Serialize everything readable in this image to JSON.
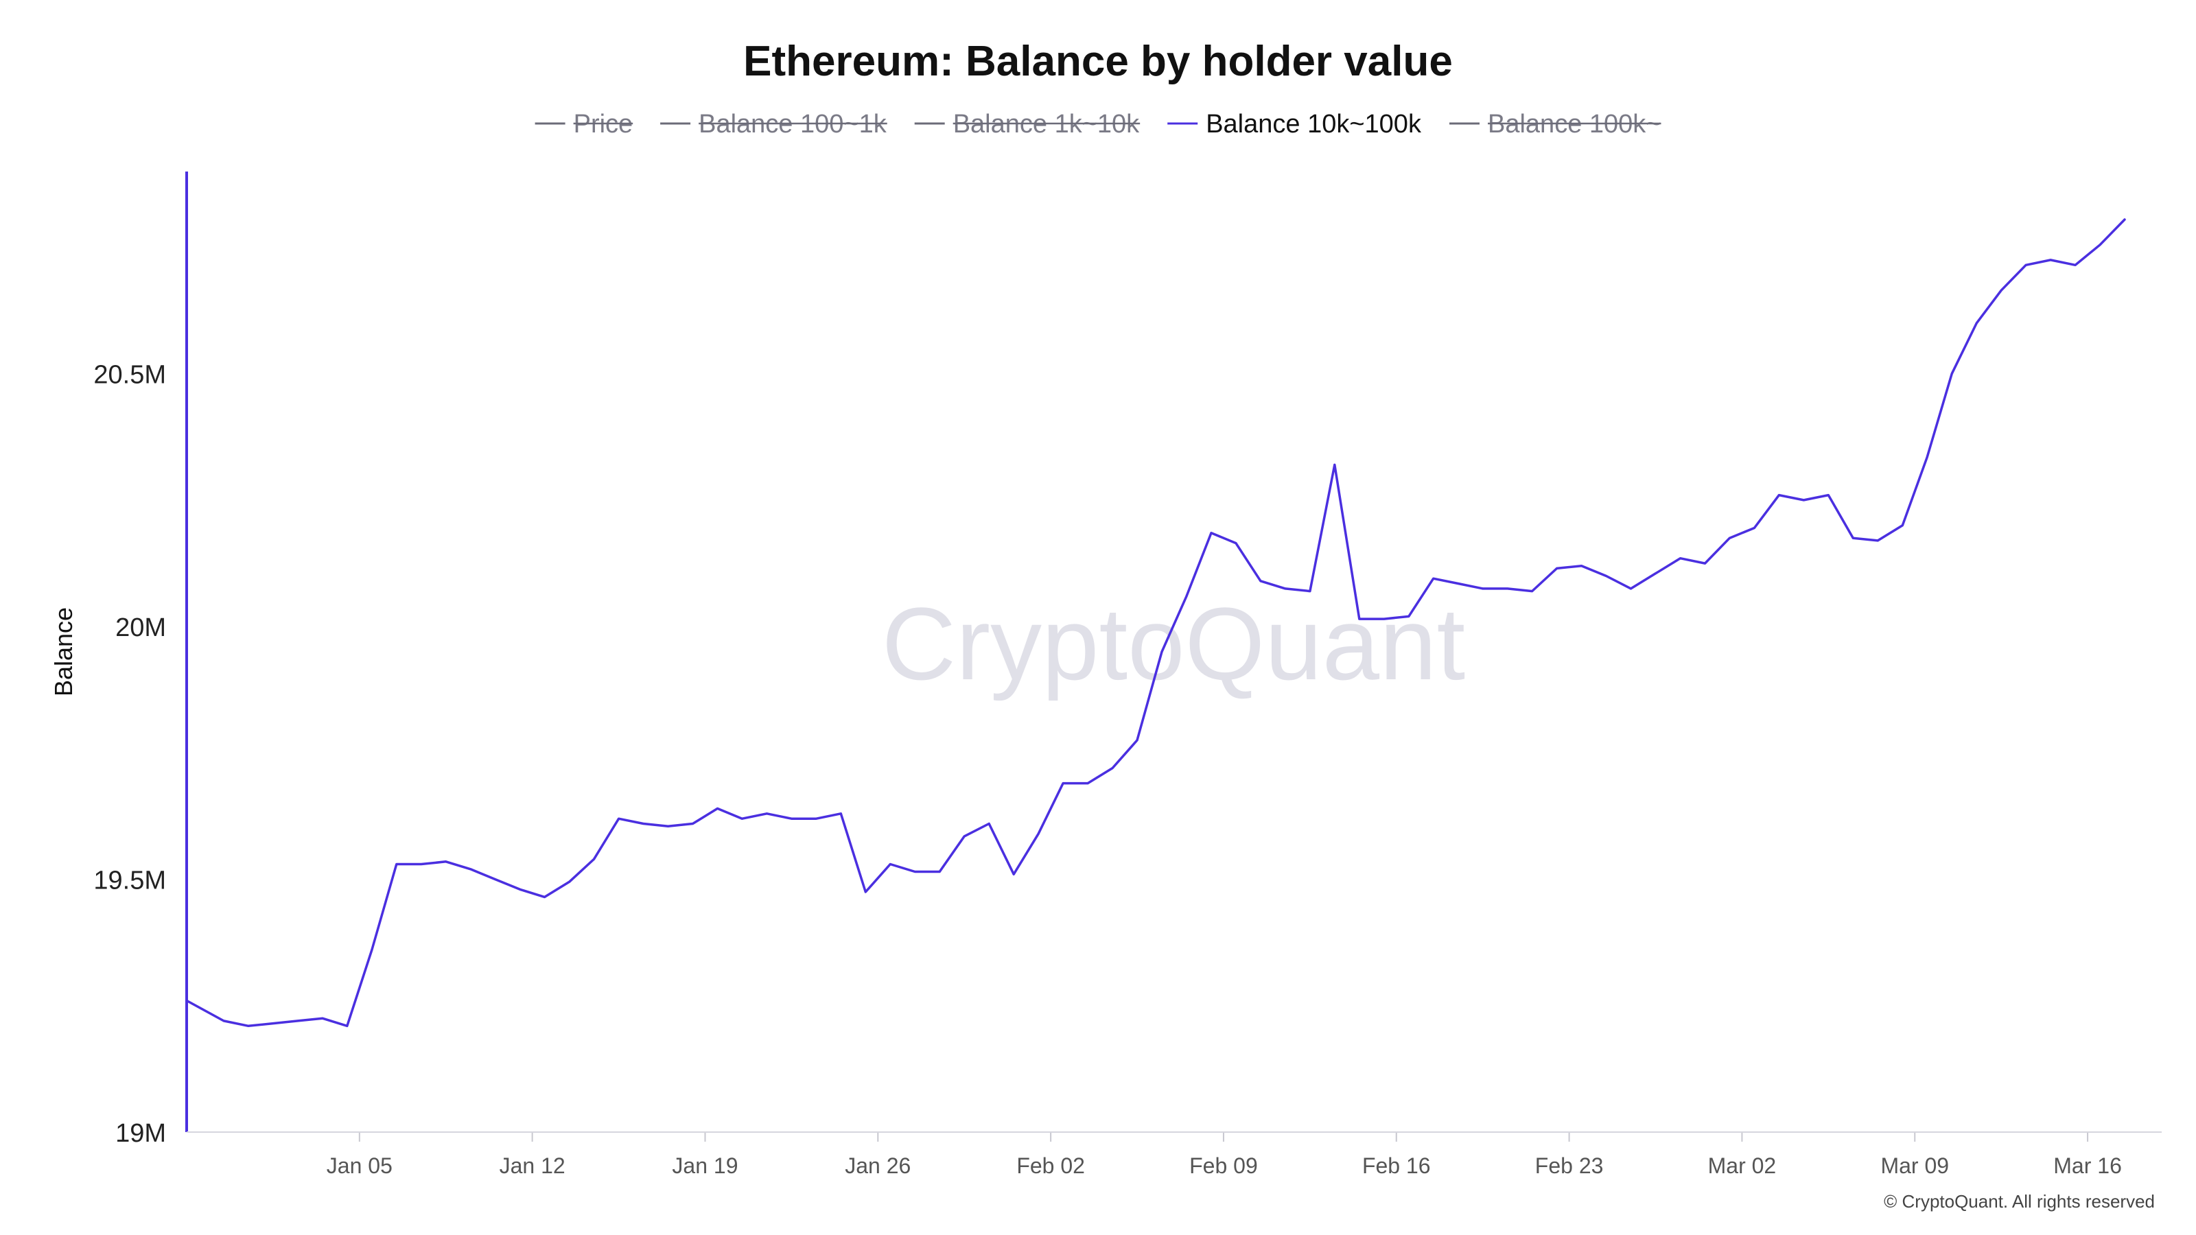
{
  "chart_data": {
    "type": "line",
    "title": "Ethereum: Balance by holder value",
    "ylabel": "Balance",
    "xlabel": "",
    "ylim": [
      19000000,
      20900000
    ],
    "y_ticks": [
      {
        "value": 19000000,
        "label": "19M"
      },
      {
        "value": 19500000,
        "label": "19.5M"
      },
      {
        "value": 20000000,
        "label": "20M"
      },
      {
        "value": 20500000,
        "label": "20.5M"
      }
    ],
    "x_ticks": [
      {
        "index": 7,
        "label": "Jan 05"
      },
      {
        "index": 14,
        "label": "Jan 12"
      },
      {
        "index": 21,
        "label": "Jan 19"
      },
      {
        "index": 28,
        "label": "Jan 26"
      },
      {
        "index": 35,
        "label": "Feb 02"
      },
      {
        "index": 42,
        "label": "Feb 09"
      },
      {
        "index": 49,
        "label": "Feb 16"
      },
      {
        "index": 56,
        "label": "Feb 23"
      },
      {
        "index": 63,
        "label": "Mar 02"
      },
      {
        "index": 70,
        "label": "Mar 09"
      },
      {
        "index": 77,
        "label": "Mar 16"
      }
    ],
    "legend": [
      {
        "label": "Price",
        "active": false
      },
      {
        "label": "Balance 100~1k",
        "active": false
      },
      {
        "label": "Balance 1k~10k",
        "active": false
      },
      {
        "label": "Balance 10k~100k",
        "active": true
      },
      {
        "label": "Balance 100k~",
        "active": false
      }
    ],
    "series": [
      {
        "name": "Balance 10k~100k",
        "color": "#4a2fe0",
        "x_start_index": 1.5,
        "values": [
          19260000,
          19220000,
          19210000,
          19215000,
          19220000,
          19225000,
          19210000,
          19360000,
          19530000,
          19530000,
          19535000,
          19520000,
          19500000,
          19480000,
          19465000,
          19495000,
          19540000,
          19620000,
          19610000,
          19605000,
          19610000,
          19640000,
          19620000,
          19630000,
          19620000,
          19620000,
          19630000,
          19475000,
          19530000,
          19515000,
          19515000,
          19585000,
          19610000,
          19510000,
          19590000,
          19690000,
          19690000,
          19720000,
          19775000,
          19950000,
          20060000,
          20185000,
          20165000,
          20090000,
          20075000,
          20070000,
          20320000,
          20015000,
          20015000,
          20020000,
          20095000,
          20085000,
          20075000,
          20075000,
          20070000,
          20115000,
          20120000,
          20100000,
          20075000,
          20105000,
          20135000,
          20125000,
          20175000,
          20195000,
          20260000,
          20250000,
          20260000,
          20175000,
          20170000,
          20200000,
          20335000,
          20500000,
          20600000,
          20665000,
          20715000,
          20725000,
          20715000,
          20755000,
          20805000
        ]
      }
    ]
  },
  "watermark": "CryptoQuant",
  "copyright": "© CryptoQuant. All rights reserved"
}
